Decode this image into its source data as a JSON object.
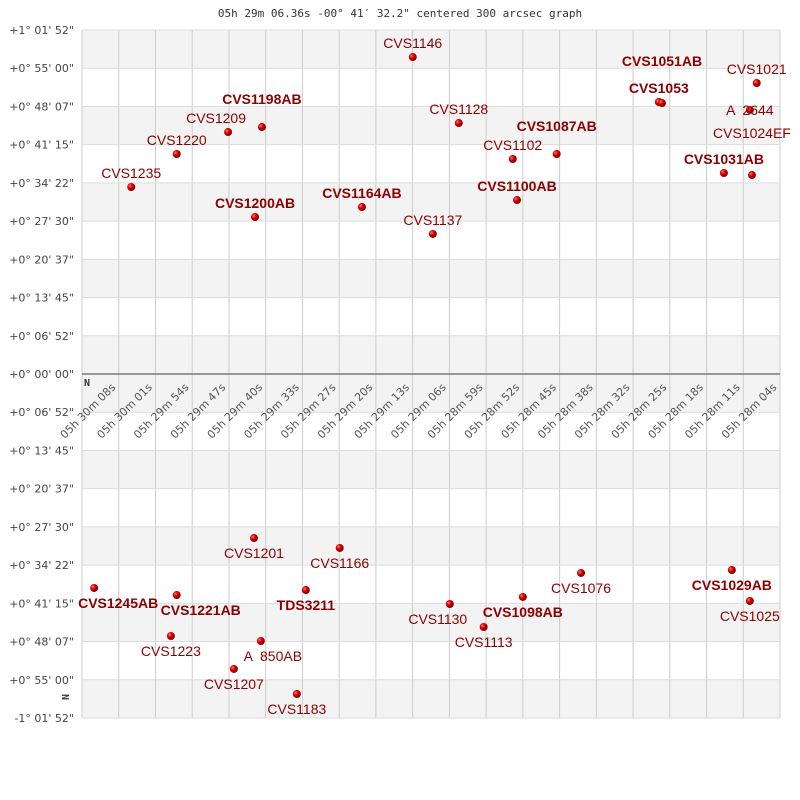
{
  "chart_data": {
    "type": "scatter",
    "title": "05h 29m 06.36s -00° 41′ 32.2\" centered 300 arcsec graph",
    "x_unit": "RA seconds after 05h28m00s",
    "y_unit": "Dec offset arcsec",
    "xlim": [
      128,
      -3.9
    ],
    "ylim": [
      -3712,
      3712
    ],
    "grid": true,
    "x_tick_labels": [
      "05h 30m 08s",
      "05h 30m 01s",
      "05h 29m 54s",
      "05h 29m 47s",
      "05h 29m 40s",
      "05h 29m 33s",
      "05h 29m 27s",
      "05h 29m 20s",
      "05h 29m 13s",
      "05h 29m 06s",
      "05h 28m 59s",
      "05h 28m 52s",
      "05h 28m 45s",
      "05h 28m 38s",
      "05h 28m 32s",
      "05h 28m 25s",
      "05h 28m 18s",
      "05h 28m 11s",
      "05h 28m 04s"
    ],
    "y_tick_labels": [
      "+1° 01' 52\"",
      "+0° 55' 00\"",
      "+0° 48' 07\"",
      "+0° 41' 15\"",
      "+0° 34' 22\"",
      "+0° 27' 30\"",
      "+0° 20' 37\"",
      "+0° 13' 45\"",
      "+0° 06' 52\"",
      "+0° 00' 00\"",
      "+0° 06' 52\"",
      "+0° 13' 45\"",
      "+0° 20' 37\"",
      "+0° 27' 30\"",
      "+0° 34' 22\"",
      "+0° 41' 15\"",
      "+0° 48' 07\"",
      "+0° 55' 00\"",
      "-1° 01' 52\""
    ],
    "compass_labels": [
      "N",
      "N"
    ],
    "point_color": "#dd0000",
    "label_color": "#8b0000",
    "points": [
      {
        "name": "CVS1235",
        "x": 118.7,
        "y": 2018,
        "bold": false
      },
      {
        "name": "CVS1220",
        "x": 110.1,
        "y": 2374,
        "bold": false
      },
      {
        "name": "CVS1209",
        "x": 100.4,
        "y": 2611,
        "bold": false
      },
      {
        "name": "CVS1198AB",
        "x": 94.0,
        "y": 2665,
        "bold": true
      },
      {
        "name": "CVS1200AB",
        "x": 95.3,
        "y": 1694,
        "bold": true
      },
      {
        "name": "CVS1164AB",
        "x": 75.1,
        "y": 1802,
        "bold": true
      },
      {
        "name": "CVS1146",
        "x": 65.5,
        "y": 3420,
        "bold": false
      },
      {
        "name": "CVS1137",
        "x": 61.7,
        "y": 1511,
        "bold": false
      },
      {
        "name": "CVS1128",
        "x": 56.8,
        "y": 2708,
        "bold": false
      },
      {
        "name": "CVS1102",
        "x": 46.6,
        "y": 2320,
        "bold": false
      },
      {
        "name": "CVS1100AB",
        "x": 45.8,
        "y": 1877,
        "bold": true
      },
      {
        "name": "CVS1087AB",
        "x": 38.3,
        "y": 2374,
        "bold": true
      },
      {
        "name": "CVS1053",
        "x": 19.0,
        "y": 2935,
        "bold": true
      },
      {
        "name": "CVS1051AB",
        "x": 18.4,
        "y": 2924,
        "bold": true
      },
      {
        "name": "CVS1021",
        "x": 0.5,
        "y": 3140,
        "bold": false
      },
      {
        "name": "A  2644",
        "x": 1.8,
        "y": 2849,
        "bold": false
      },
      {
        "name": "CVS1031AB",
        "x": 6.7,
        "y": 2169,
        "bold": true
      },
      {
        "name": "CVS1024EF",
        "x": 1.4,
        "y": 2147,
        "bold": false
      },
      {
        "name": "CVS1245AB",
        "x": 125.7,
        "y": -2309,
        "bold": true
      },
      {
        "name": "CVS1221AB",
        "x": 110.1,
        "y": -2385,
        "bold": true
      },
      {
        "name": "CVS1223",
        "x": 111.2,
        "y": -2827,
        "bold": false
      },
      {
        "name": "CVS1201",
        "x": 95.5,
        "y": -1770,
        "bold": false
      },
      {
        "name": "CVS1207",
        "x": 99.3,
        "y": -3183,
        "bold": false
      },
      {
        "name": "A  850AB",
        "x": 94.2,
        "y": -2881,
        "bold": false
      },
      {
        "name": "CVS1183",
        "x": 87.4,
        "y": -3453,
        "bold": false
      },
      {
        "name": "TDS3211",
        "x": 85.7,
        "y": -2331,
        "bold": true
      },
      {
        "name": "CVS1166",
        "x": 79.3,
        "y": -1877,
        "bold": false
      },
      {
        "name": "CVS1130",
        "x": 58.5,
        "y": -2482,
        "bold": false
      },
      {
        "name": "CVS1113",
        "x": 52.1,
        "y": -2730,
        "bold": false
      },
      {
        "name": "CVS1098AB",
        "x": 44.7,
        "y": -2406,
        "bold": true
      },
      {
        "name": "CVS1076",
        "x": 33.7,
        "y": -2147,
        "bold": false
      },
      {
        "name": "CVS1029AB",
        "x": 5.2,
        "y": -2115,
        "bold": true
      },
      {
        "name": "CVS1025",
        "x": 1.8,
        "y": -2449,
        "bold": false
      }
    ]
  }
}
